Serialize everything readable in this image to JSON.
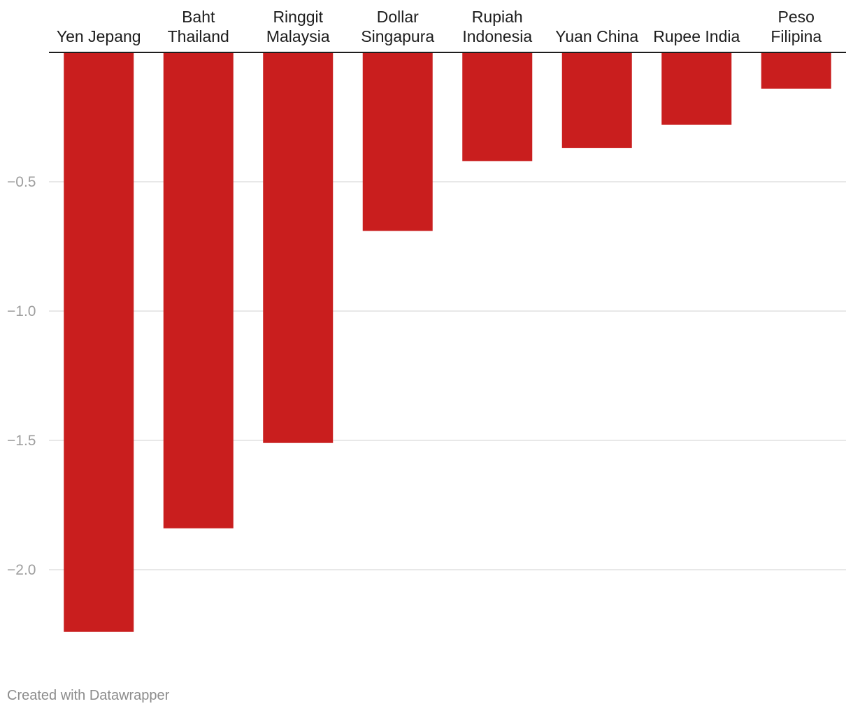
{
  "chart_data": {
    "type": "bar",
    "categories": [
      [
        "Yen Jepang"
      ],
      [
        "Baht",
        "Thailand"
      ],
      [
        "Ringgit",
        "Malaysia"
      ],
      [
        "Dollar",
        "Singapura"
      ],
      [
        "Rupiah",
        "Indonesia"
      ],
      [
        "Yuan China"
      ],
      [
        "Rupee India"
      ],
      [
        "Peso",
        "Filipina"
      ]
    ],
    "values": [
      -2.24,
      -1.84,
      -1.51,
      -0.69,
      -0.42,
      -0.37,
      -0.28,
      -0.14
    ],
    "ylim": [
      -2.25,
      0
    ],
    "yticks": [
      -0.5,
      -1.0,
      -1.5,
      -2.0
    ],
    "ytick_labels": [
      "−0.5",
      "−1.0",
      "−1.5",
      "−2.0"
    ],
    "grid": true,
    "category_labels_position": "top",
    "bar_color": "#c91e1e",
    "title": "",
    "xlabel": "",
    "ylabel": ""
  },
  "footer": {
    "credit": "Created with Datawrapper"
  }
}
